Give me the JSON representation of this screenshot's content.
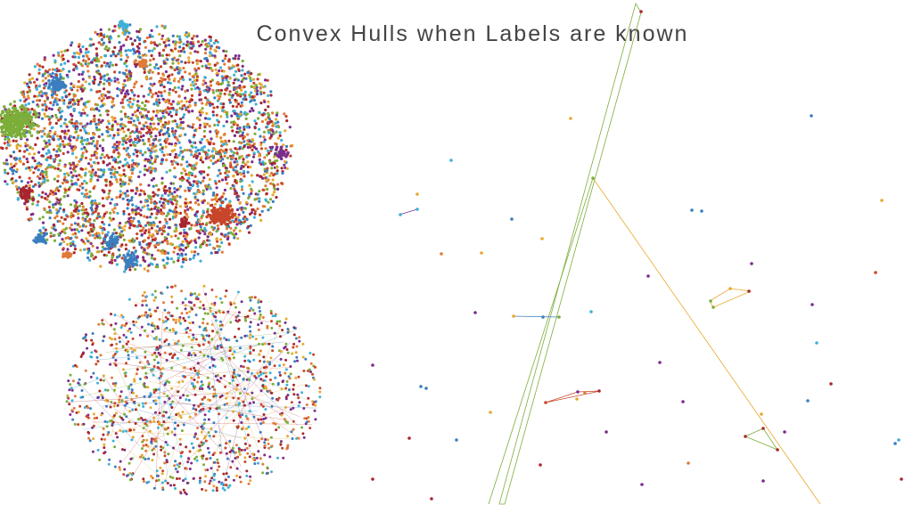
{
  "slide": {
    "title": "Convex Hulls when Labels are known"
  },
  "palette": [
    "#e07b39",
    "#3a7ebf",
    "#7cae3a",
    "#a8262f",
    "#e8a830",
    "#3fb0d8",
    "#7b2d8e",
    "#c8452b"
  ],
  "chart_data": [
    {
      "type": "scatter",
      "title": "",
      "xlabel": "",
      "ylabel": "",
      "points": 3600,
      "grid": false,
      "note_visible": "dense multi-color cloud with tight same-color clusters"
    },
    {
      "type": "scatter",
      "title": "",
      "xlabel": "",
      "ylabel": "",
      "points": 1300,
      "grid": false
    },
    {
      "type": "scatter",
      "title": "",
      "xlabel": "",
      "ylabel": "",
      "grid": false,
      "hulls": [
        {
          "color": "#7cae3a",
          "points": [
            [
              713,
              4
            ],
            [
              560,
              566
            ],
            [
              566,
              566
            ],
            [
              719,
              14
            ]
          ]
        },
        {
          "color": "#7cae3a",
          "points": [
            [
              665,
              200
            ],
            [
              548,
              566
            ]
          ]
        },
        {
          "color": "#e8a830",
          "points": [
            [
              665,
              200
            ],
            [
              920,
              566
            ]
          ]
        },
        {
          "color": "#3a7ebf",
          "points": [
            [
              575,
              355
            ],
            [
              628,
              356
            ]
          ]
        },
        {
          "color": "#7b2d8e",
          "points": [
            [
              448,
              241
            ],
            [
              468,
              235
            ]
          ]
        },
        {
          "color": "#c8452b",
          "points": [
            [
              612,
              452
            ],
            [
              648,
              440
            ],
            [
              673,
              439
            ]
          ]
        },
        {
          "color": "#e8a830",
          "points": [
            [
              796,
              338
            ],
            [
              819,
              324
            ],
            [
              842,
              327
            ],
            [
              800,
              345
            ]
          ]
        },
        {
          "color": "#7cae3a",
          "points": [
            [
              836,
              490
            ],
            [
              856,
              481
            ],
            [
              872,
              505
            ]
          ]
        }
      ],
      "points": [
        [
          719,
          13,
          "#a8262f"
        ],
        [
          640,
          133,
          "#e8a830"
        ],
        [
          910,
          130,
          "#3a7ebf"
        ],
        [
          506,
          180,
          "#3fb0d8"
        ],
        [
          468,
          218,
          "#e8a830"
        ],
        [
          449,
          241,
          "#3fb0d8"
        ],
        [
          468,
          235,
          "#3fb0d8"
        ],
        [
          574,
          246,
          "#3a7ebf"
        ],
        [
          776,
          236,
          "#3a7ebf"
        ],
        [
          787,
          237,
          "#3a7ebf"
        ],
        [
          989,
          225,
          "#e8a830"
        ],
        [
          608,
          268,
          "#e8a830"
        ],
        [
          495,
          285,
          "#e07b39"
        ],
        [
          540,
          284,
          "#e8a830"
        ],
        [
          843,
          296,
          "#7b2d8e"
        ],
        [
          727,
          310,
          "#7b2d8e"
        ],
        [
          982,
          306,
          "#c8452b"
        ],
        [
          665,
          200,
          "#7cae3a"
        ],
        [
          797,
          338,
          "#7cae3a"
        ],
        [
          819,
          324,
          "#e8a830"
        ],
        [
          840,
          327,
          "#a8262f"
        ],
        [
          800,
          345,
          "#7cae3a"
        ],
        [
          911,
          342,
          "#7b2d8e"
        ],
        [
          533,
          351,
          "#7b2d8e"
        ],
        [
          576,
          355,
          "#e8a830"
        ],
        [
          609,
          356,
          "#3a7ebf"
        ],
        [
          627,
          356,
          "#7cae3a"
        ],
        [
          663,
          350,
          "#3fb0d8"
        ],
        [
          916,
          385,
          "#3fb0d8"
        ],
        [
          740,
          407,
          "#7b2d8e"
        ],
        [
          418,
          410,
          "#7b2d8e"
        ],
        [
          472,
          434,
          "#3a7ebf"
        ],
        [
          478,
          436,
          "#3a7ebf"
        ],
        [
          932,
          431,
          "#a8262f"
        ],
        [
          612,
          452,
          "#c8452b"
        ],
        [
          648,
          440,
          "#7b2d8e"
        ],
        [
          656,
          441,
          "#e07b39"
        ],
        [
          672,
          439,
          "#a8262f"
        ],
        [
          647,
          448,
          "#e8a830"
        ],
        [
          906,
          450,
          "#3a7ebf"
        ],
        [
          766,
          451,
          "#7b2d8e"
        ],
        [
          550,
          463,
          "#e8a830"
        ],
        [
          854,
          465,
          "#e8a830"
        ],
        [
          856,
          481,
          "#a8262f"
        ],
        [
          836,
          490,
          "#a8262f"
        ],
        [
          872,
          505,
          "#a8262f"
        ],
        [
          880,
          485,
          "#7b2d8e"
        ],
        [
          680,
          485,
          "#7b2d8e"
        ],
        [
          459,
          492,
          "#a8262f"
        ],
        [
          512,
          494,
          "#3a7ebf"
        ],
        [
          1004,
          498,
          "#3a7ebf"
        ],
        [
          1008,
          494,
          "#3fb0d8"
        ],
        [
          606,
          522,
          "#a8262f"
        ],
        [
          772,
          520,
          "#e07b39"
        ],
        [
          856,
          540,
          "#7b2d8e"
        ],
        [
          720,
          544,
          "#7b2d8e"
        ],
        [
          418,
          538,
          "#a8262f"
        ],
        [
          484,
          560,
          "#a8262f"
        ],
        [
          1011,
          538,
          "#a8262f"
        ]
      ]
    }
  ]
}
